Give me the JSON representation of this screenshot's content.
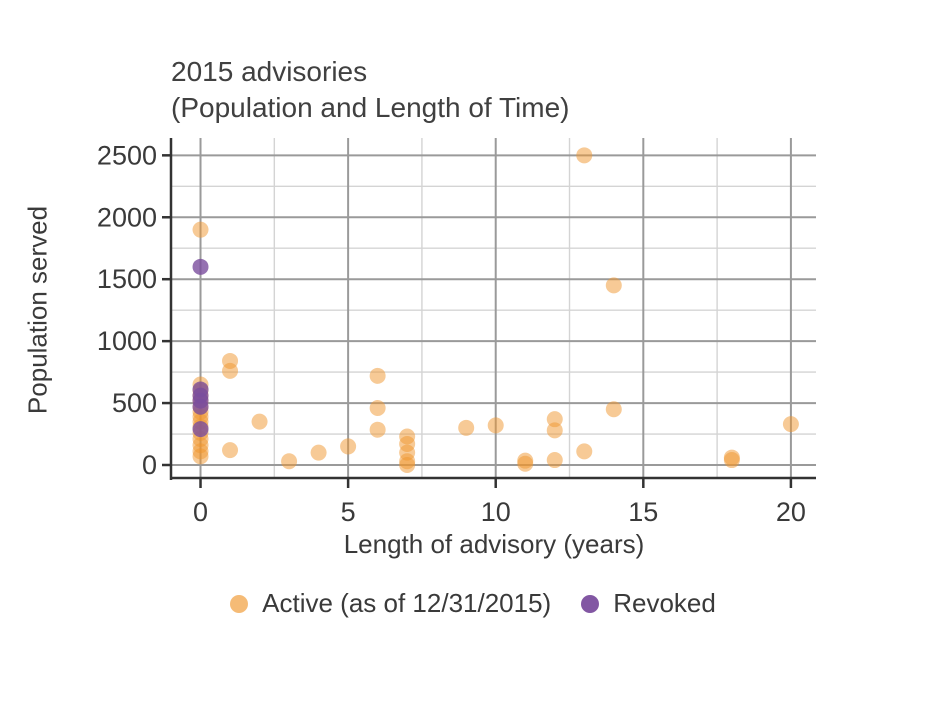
{
  "title": {
    "line1": "2015 advisories",
    "line2": "(Population and Length of Time)"
  },
  "chart_data": {
    "type": "scatter",
    "title": "2015 advisories (Population and Length of Time)",
    "xlabel": "Length of advisory (years)",
    "ylabel": "Population served",
    "xlim": [
      -1,
      20.85
    ],
    "ylim": [
      -105,
      2640
    ],
    "x_ticks": [
      0,
      5,
      10,
      15,
      20
    ],
    "y_ticks": [
      0,
      500,
      1000,
      1500,
      2000,
      2500
    ],
    "x_minor_ticks": [
      2.5,
      7.5,
      12.5,
      17.5
    ],
    "y_minor_ticks": [
      250,
      750,
      1250,
      1750,
      2250
    ],
    "grid": "major and minor, gray on white",
    "legend_position": "bottom center",
    "point_radius_px": 8,
    "series": [
      {
        "name": "Active (as of 12/31/2015)",
        "color": "#F0962D",
        "opacity": 0.5,
        "points": [
          [
            0,
            1900
          ],
          [
            0,
            650
          ],
          [
            0,
            600
          ],
          [
            0,
            560
          ],
          [
            0,
            520
          ],
          [
            0,
            470
          ],
          [
            0,
            430
          ],
          [
            0,
            390
          ],
          [
            0,
            350
          ],
          [
            0,
            310
          ],
          [
            0,
            260
          ],
          [
            0,
            210
          ],
          [
            0,
            160
          ],
          [
            0,
            110
          ],
          [
            0,
            70
          ],
          [
            1,
            840
          ],
          [
            1,
            760
          ],
          [
            1,
            120
          ],
          [
            2,
            350
          ],
          [
            3,
            30
          ],
          [
            4,
            100
          ],
          [
            5,
            150
          ],
          [
            6,
            720
          ],
          [
            6,
            460
          ],
          [
            6,
            285
          ],
          [
            7,
            230
          ],
          [
            7,
            170
          ],
          [
            7,
            100
          ],
          [
            7,
            30
          ],
          [
            7,
            0
          ],
          [
            9,
            300
          ],
          [
            10,
            320
          ],
          [
            11,
            35
          ],
          [
            11,
            10
          ],
          [
            12,
            370
          ],
          [
            12,
            280
          ],
          [
            12,
            40
          ],
          [
            13,
            2500
          ],
          [
            13,
            110
          ],
          [
            14,
            1450
          ],
          [
            14,
            450
          ],
          [
            18,
            60
          ],
          [
            18,
            40
          ],
          [
            20,
            330
          ]
        ]
      },
      {
        "name": "Revoked",
        "color": "#7B4E9E",
        "opacity": 0.8,
        "points": [
          [
            0,
            1600
          ],
          [
            0,
            610
          ],
          [
            0,
            560
          ],
          [
            0,
            520
          ],
          [
            0,
            470
          ],
          [
            0,
            290
          ]
        ]
      }
    ],
    "colors": {
      "major_grid": "#9a9a9a",
      "minor_grid": "#d4d4d4",
      "axis_line": "#333333",
      "text": "#3a3a3a"
    }
  }
}
